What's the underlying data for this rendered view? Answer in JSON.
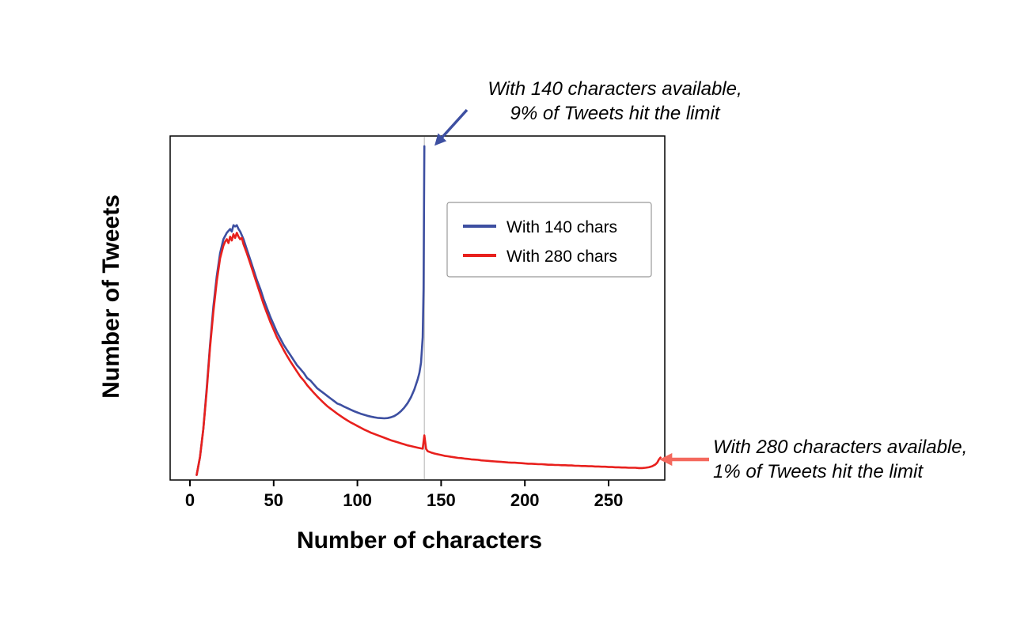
{
  "figure": {
    "colors": {
      "blue": "#3d4fa1",
      "red": "#e8201d",
      "arrow_blue": "#3d4fa1",
      "arrow_red": "#f4695e",
      "reference": "#cccccc",
      "box": "#000000"
    }
  },
  "chart_data": {
    "type": "line",
    "title": "",
    "xlabel": "Number of characters",
    "ylabel": "Number of Tweets",
    "x_ticks": [
      0,
      50,
      100,
      150,
      200,
      250
    ],
    "y_ticks": [],
    "x_range": [
      0,
      281
    ],
    "grid": false,
    "legend_position": "upper middle inside plot",
    "reference_line_x": 140,
    "series": [
      {
        "id": "140",
        "name": "With 140 chars",
        "color": "#3d4fa1",
        "points": [
          [
            4,
            0.02
          ],
          [
            6,
            0.09
          ],
          [
            8,
            0.2
          ],
          [
            10,
            0.36
          ],
          [
            12,
            0.53
          ],
          [
            14,
            0.68
          ],
          [
            16,
            0.8
          ],
          [
            18,
            0.89
          ],
          [
            20,
            0.945
          ],
          [
            22,
            0.97
          ],
          [
            24,
            0.985
          ],
          [
            25,
            0.975
          ],
          [
            26,
            1.0
          ],
          [
            27,
            0.995
          ],
          [
            28,
            1.0
          ],
          [
            29,
            0.985
          ],
          [
            30,
            0.975
          ],
          [
            32,
            0.945
          ],
          [
            34,
            0.905
          ],
          [
            36,
            0.865
          ],
          [
            38,
            0.825
          ],
          [
            40,
            0.785
          ],
          [
            42,
            0.75
          ],
          [
            44,
            0.71
          ],
          [
            46,
            0.675
          ],
          [
            48,
            0.64
          ],
          [
            50,
            0.61
          ],
          [
            52,
            0.58
          ],
          [
            54,
            0.555
          ],
          [
            56,
            0.53
          ],
          [
            58,
            0.51
          ],
          [
            60,
            0.49
          ],
          [
            62,
            0.47
          ],
          [
            64,
            0.45
          ],
          [
            66,
            0.435
          ],
          [
            68,
            0.42
          ],
          [
            70,
            0.4
          ],
          [
            72,
            0.39
          ],
          [
            74,
            0.375
          ],
          [
            76,
            0.36
          ],
          [
            78,
            0.35
          ],
          [
            80,
            0.34
          ],
          [
            82,
            0.33
          ],
          [
            84,
            0.32
          ],
          [
            86,
            0.31
          ],
          [
            88,
            0.3
          ],
          [
            90,
            0.295
          ],
          [
            92,
            0.288
          ],
          [
            94,
            0.282
          ],
          [
            96,
            0.276
          ],
          [
            98,
            0.27
          ],
          [
            100,
            0.265
          ],
          [
            102,
            0.26
          ],
          [
            104,
            0.256
          ],
          [
            106,
            0.252
          ],
          [
            108,
            0.249
          ],
          [
            110,
            0.246
          ],
          [
            112,
            0.244
          ],
          [
            114,
            0.243
          ],
          [
            116,
            0.242
          ],
          [
            118,
            0.243
          ],
          [
            120,
            0.246
          ],
          [
            122,
            0.251
          ],
          [
            124,
            0.259
          ],
          [
            126,
            0.27
          ],
          [
            128,
            0.284
          ],
          [
            130,
            0.302
          ],
          [
            132,
            0.325
          ],
          [
            134,
            0.355
          ],
          [
            136,
            0.395
          ],
          [
            137,
            0.42
          ],
          [
            138,
            0.46
          ],
          [
            139,
            0.56
          ],
          [
            139.5,
            0.75
          ],
          [
            140,
            1.31
          ]
        ]
      },
      {
        "id": "280",
        "name": "With 280 chars",
        "color": "#e8201d",
        "points": [
          [
            4,
            0.02
          ],
          [
            6,
            0.09
          ],
          [
            8,
            0.2
          ],
          [
            10,
            0.35
          ],
          [
            12,
            0.52
          ],
          [
            14,
            0.66
          ],
          [
            16,
            0.78
          ],
          [
            18,
            0.87
          ],
          [
            20,
            0.92
          ],
          [
            21,
            0.935
          ],
          [
            22,
            0.945
          ],
          [
            23,
            0.93
          ],
          [
            24,
            0.955
          ],
          [
            25,
            0.94
          ],
          [
            26,
            0.965
          ],
          [
            27,
            0.95
          ],
          [
            28,
            0.97
          ],
          [
            29,
            0.955
          ],
          [
            30,
            0.945
          ],
          [
            31,
            0.95
          ],
          [
            32,
            0.925
          ],
          [
            34,
            0.89
          ],
          [
            36,
            0.85
          ],
          [
            38,
            0.81
          ],
          [
            40,
            0.77
          ],
          [
            42,
            0.73
          ],
          [
            44,
            0.69
          ],
          [
            46,
            0.655
          ],
          [
            48,
            0.62
          ],
          [
            50,
            0.59
          ],
          [
            52,
            0.56
          ],
          [
            54,
            0.535
          ],
          [
            56,
            0.51
          ],
          [
            58,
            0.487
          ],
          [
            60,
            0.465
          ],
          [
            62,
            0.445
          ],
          [
            64,
            0.425
          ],
          [
            66,
            0.405
          ],
          [
            68,
            0.39
          ],
          [
            70,
            0.372
          ],
          [
            72,
            0.357
          ],
          [
            74,
            0.342
          ],
          [
            76,
            0.328
          ],
          [
            78,
            0.315
          ],
          [
            80,
            0.302
          ],
          [
            82,
            0.29
          ],
          [
            84,
            0.28
          ],
          [
            86,
            0.27
          ],
          [
            88,
            0.26
          ],
          [
            90,
            0.251
          ],
          [
            92,
            0.242
          ],
          [
            94,
            0.234
          ],
          [
            96,
            0.226
          ],
          [
            98,
            0.219
          ],
          [
            100,
            0.212
          ],
          [
            102,
            0.205
          ],
          [
            104,
            0.198
          ],
          [
            106,
            0.192
          ],
          [
            108,
            0.186
          ],
          [
            110,
            0.181
          ],
          [
            112,
            0.176
          ],
          [
            114,
            0.171
          ],
          [
            116,
            0.166
          ],
          [
            118,
            0.161
          ],
          [
            120,
            0.156
          ],
          [
            122,
            0.152
          ],
          [
            124,
            0.148
          ],
          [
            126,
            0.144
          ],
          [
            128,
            0.14
          ],
          [
            130,
            0.136
          ],
          [
            132,
            0.133
          ],
          [
            134,
            0.13
          ],
          [
            136,
            0.127
          ],
          [
            138,
            0.124
          ],
          [
            139,
            0.123
          ],
          [
            140,
            0.175
          ],
          [
            141,
            0.122
          ],
          [
            142,
            0.113
          ],
          [
            144,
            0.108
          ],
          [
            146,
            0.104
          ],
          [
            148,
            0.101
          ],
          [
            150,
            0.098
          ],
          [
            152,
            0.095
          ],
          [
            154,
            0.093
          ],
          [
            156,
            0.091
          ],
          [
            158,
            0.089
          ],
          [
            160,
            0.087
          ],
          [
            162,
            0.086
          ],
          [
            164,
            0.084
          ],
          [
            166,
            0.083
          ],
          [
            168,
            0.081
          ],
          [
            170,
            0.08
          ],
          [
            172,
            0.079
          ],
          [
            174,
            0.077
          ],
          [
            176,
            0.076
          ],
          [
            178,
            0.075
          ],
          [
            180,
            0.074
          ],
          [
            182,
            0.073
          ],
          [
            184,
            0.072
          ],
          [
            186,
            0.071
          ],
          [
            188,
            0.07
          ],
          [
            190,
            0.069
          ],
          [
            192,
            0.068
          ],
          [
            194,
            0.068
          ],
          [
            196,
            0.067
          ],
          [
            198,
            0.066
          ],
          [
            200,
            0.065
          ],
          [
            202,
            0.064
          ],
          [
            204,
            0.064
          ],
          [
            206,
            0.063
          ],
          [
            208,
            0.062
          ],
          [
            210,
            0.062
          ],
          [
            212,
            0.061
          ],
          [
            214,
            0.06
          ],
          [
            216,
            0.06
          ],
          [
            218,
            0.059
          ],
          [
            220,
            0.059
          ],
          [
            222,
            0.058
          ],
          [
            224,
            0.058
          ],
          [
            226,
            0.057
          ],
          [
            228,
            0.057
          ],
          [
            230,
            0.056
          ],
          [
            232,
            0.056
          ],
          [
            234,
            0.055
          ],
          [
            236,
            0.055
          ],
          [
            238,
            0.054
          ],
          [
            240,
            0.054
          ],
          [
            242,
            0.053
          ],
          [
            244,
            0.053
          ],
          [
            246,
            0.052
          ],
          [
            248,
            0.052
          ],
          [
            250,
            0.051
          ],
          [
            252,
            0.051
          ],
          [
            254,
            0.05
          ],
          [
            256,
            0.05
          ],
          [
            258,
            0.049
          ],
          [
            260,
            0.049
          ],
          [
            262,
            0.048
          ],
          [
            264,
            0.048
          ],
          [
            266,
            0.048
          ],
          [
            268,
            0.047
          ],
          [
            270,
            0.047
          ],
          [
            272,
            0.048
          ],
          [
            274,
            0.05
          ],
          [
            276,
            0.054
          ],
          [
            278,
            0.061
          ],
          [
            279,
            0.068
          ],
          [
            280,
            0.08
          ],
          [
            281,
            0.088
          ]
        ]
      }
    ],
    "annotations": {
      "limit140": {
        "line1": "With 140 characters available,",
        "line2": "9% of Tweets hit the limit"
      },
      "limit280": {
        "line1": "With 280 characters available,",
        "line2": "1% of Tweets hit the limit"
      }
    }
  }
}
